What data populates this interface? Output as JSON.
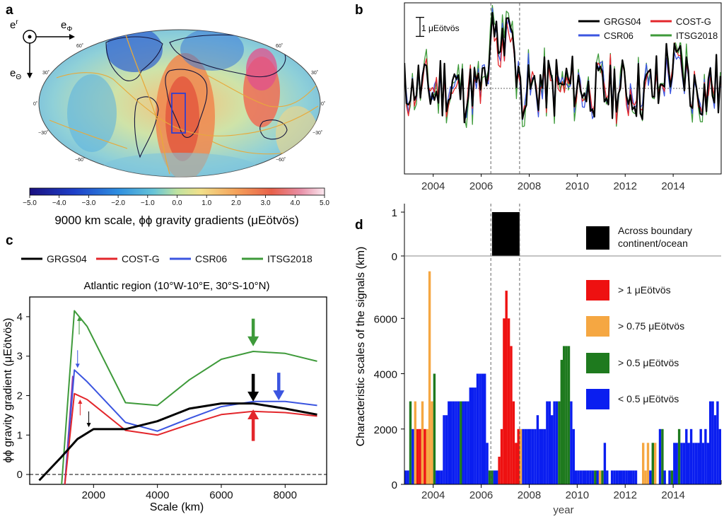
{
  "panels": {
    "a": {
      "letter": "a",
      "colorbar_title": "9000 km scale, ϕϕ gravity gradients (μEötvös)",
      "colorbar_ticks": [
        "−5.0",
        "−4.0",
        "−3.0",
        "−2.0",
        "−1.0",
        "0.0",
        "1.0",
        "2.0",
        "3.0",
        "4.0",
        "5.0"
      ],
      "axes_labels": {
        "er": "e",
        "er_sub": "r",
        "ephi": "e",
        "ephi_sub": "Φ",
        "etheta": "e",
        "etheta_sub": "Θ"
      },
      "lat_labels_left": [
        "60˚",
        "30˚",
        "0˚",
        "−30˚",
        "−60˚"
      ],
      "lat_labels_right": [
        "60˚",
        "30˚",
        "0˚",
        "−30˚",
        "−60˚"
      ]
    },
    "b": {
      "letter": "b",
      "scale_bar_label": "1 μEötvös"
    },
    "c": {
      "letter": "c"
    },
    "d": {
      "letter": "d",
      "legend": {
        "boundary": "Across boundary continent/ocean",
        "boundary_line1": "Across boundary",
        "boundary_line2": "continent/ocean",
        "gt1": "> 1 μEötvös",
        "gt075": "> 0.75 μEötvös",
        "gt05": "> 0.5 μEötvös",
        "lt05": "< 0.5 μEötvös"
      }
    }
  },
  "colors": {
    "GRGS04": "#000000",
    "COST-G": "#e3262b",
    "CSR06": "#3b55e0",
    "ITSG2018": "#3e9a3a",
    "red": "#ee1111",
    "orange": "#f5a742",
    "green": "#1e7a1e",
    "blue": "#0a1ef0",
    "black": "#000000"
  },
  "chart_data": [
    {
      "panel": "b",
      "type": "line",
      "title": "",
      "xlabel": "",
      "ylabel": "",
      "x_ticks": [
        2004,
        2006,
        2008,
        2010,
        2012,
        2014
      ],
      "xlim": [
        2002.8,
        2016.0
      ],
      "ylim": [
        -4.5,
        4.5
      ],
      "reference_line_y": 0,
      "vlines": [
        2006.4,
        2007.6
      ],
      "scale_bar_value": 1,
      "legend": [
        "GRGS04",
        "COST-G",
        "CSR06",
        "ITSG2018"
      ],
      "series": [
        {
          "name": "GRGS04",
          "seed": 1,
          "amp": 1.0
        },
        {
          "name": "COST-G",
          "seed": 2,
          "amp": 0.9
        },
        {
          "name": "CSR06",
          "seed": 3,
          "amp": 0.95
        },
        {
          "name": "ITSG2018",
          "seed": 4,
          "amp": 1.15
        }
      ]
    },
    {
      "panel": "c",
      "type": "line",
      "title": "Atlantic region (10°W-10°E, 30°S-10°N)",
      "xlabel": "Scale (km)",
      "ylabel": "ϕϕ gravity gradient (μEötvös)",
      "x_ticks": [
        2000,
        4000,
        6000,
        8000
      ],
      "y_ticks": [
        0,
        1,
        2,
        3,
        4
      ],
      "xlim": [
        0,
        9300
      ],
      "ylim": [
        -0.25,
        4.5
      ],
      "reference_line_y": 0,
      "legend": [
        "GRGS04",
        "COST-G",
        "CSR06",
        "ITSG2018"
      ],
      "series": [
        {
          "name": "GRGS04",
          "x": [
            300,
            1000,
            1500,
            2000,
            3000,
            4000,
            5000,
            6000,
            7000,
            8000,
            9000
          ],
          "values": [
            -0.15,
            0.45,
            0.9,
            1.15,
            1.15,
            1.35,
            1.67,
            1.8,
            1.8,
            1.67,
            1.52
          ]
        },
        {
          "name": "COST-G",
          "x": [
            1100,
            1400,
            1800,
            3000,
            4000,
            5000,
            6000,
            7000,
            8000,
            9000
          ],
          "values": [
            -0.25,
            2.05,
            1.9,
            1.12,
            1.0,
            1.27,
            1.52,
            1.6,
            1.57,
            1.48
          ]
        },
        {
          "name": "CSR06",
          "x": [
            1100,
            1400,
            1800,
            3000,
            4000,
            5000,
            6000,
            7000,
            8000,
            9000
          ],
          "values": [
            -0.25,
            2.65,
            2.35,
            1.32,
            1.1,
            1.42,
            1.72,
            1.85,
            1.85,
            1.75
          ]
        },
        {
          "name": "ITSG2018",
          "x": [
            1000,
            1400,
            1800,
            3000,
            4000,
            5000,
            6000,
            7000,
            8000,
            9000
          ],
          "values": [
            -0.25,
            4.15,
            3.75,
            1.82,
            1.75,
            2.4,
            2.92,
            3.12,
            3.07,
            2.87
          ]
        }
      ],
      "annotations": [
        {
          "kind": "big-arrow",
          "color": "ITSG2018",
          "x": 7000,
          "tip": 3.25,
          "tail": 3.95
        },
        {
          "kind": "big-arrow",
          "color": "GRGS04",
          "x": 7000,
          "tip": 1.85,
          "tail": 2.55
        },
        {
          "kind": "big-arrow",
          "color": "CSR06",
          "x": 7800,
          "tip": 1.88,
          "tail": 2.58
        },
        {
          "kind": "big-arrow-up",
          "color": "COST-G",
          "x": 7000,
          "tip": 1.65,
          "tail": 0.85
        },
        {
          "kind": "thin-arrow-up",
          "color": "ITSG2018",
          "x": 1550,
          "tip": 4.0,
          "tail": 3.55
        },
        {
          "kind": "thin-arrow-down",
          "color": "CSR06",
          "x": 1500,
          "tip": 2.7,
          "tail": 3.15
        },
        {
          "kind": "thin-arrow-up",
          "color": "COST-G",
          "x": 1580,
          "tip": 1.9,
          "tail": 1.5
        },
        {
          "kind": "thin-arrow-down",
          "color": "GRGS04",
          "x": 1850,
          "tip": 1.2,
          "tail": 1.6
        }
      ]
    },
    {
      "panel": "d",
      "type": "bar",
      "title": "",
      "xlabel": "year",
      "ylabel": "Characteristic scales of the signals (km)",
      "x_ticks": [
        2004,
        2006,
        2008,
        2010,
        2012,
        2014
      ],
      "y_ticks": [
        0,
        2000,
        4000,
        6000
      ],
      "xlim": [
        2002.8,
        2016.0
      ],
      "ylim": [
        0,
        8000
      ],
      "boundary_indicator": {
        "ylim": [
          0,
          1
        ],
        "y_ticks": [
          0,
          1
        ],
        "start": 2006.45,
        "end": 2007.6,
        "value": 1
      },
      "vlines": [
        2006.4,
        2007.6
      ],
      "legend": [
        "> 1 μEötvös",
        "> 0.75 μEötvös",
        "> 0.5 μEötvös",
        "< 0.5 μEötvös"
      ],
      "bar_width_years": 0.0833,
      "bars": [
        {
          "year": 2002.85,
          "value": 500,
          "cat": "blue"
        },
        {
          "year": 2002.95,
          "value": 500,
          "cat": "blue"
        },
        {
          "year": 2003.05,
          "value": 3000,
          "cat": "green"
        },
        {
          "year": 2003.15,
          "value": 2000,
          "cat": "blue"
        },
        {
          "year": 2003.25,
          "value": 3000,
          "cat": "orange"
        },
        {
          "year": 2003.35,
          "value": 2000,
          "cat": "red"
        },
        {
          "year": 2003.45,
          "value": 2000,
          "cat": "red"
        },
        {
          "year": 2003.55,
          "value": 3000,
          "cat": "orange"
        },
        {
          "year": 2003.65,
          "value": 2000,
          "cat": "red"
        },
        {
          "year": 2003.75,
          "value": 2000,
          "cat": "orange"
        },
        {
          "year": 2003.85,
          "value": 7700,
          "cat": "orange"
        },
        {
          "year": 2003.95,
          "value": 3000,
          "cat": "orange"
        },
        {
          "year": 2004.05,
          "value": 4000,
          "cat": "green"
        },
        {
          "year": 2004.15,
          "value": 500,
          "cat": "blue"
        },
        {
          "year": 2004.25,
          "value": 500,
          "cat": "blue"
        },
        {
          "year": 2004.35,
          "value": 500,
          "cat": "blue"
        },
        {
          "year": 2004.45,
          "value": 2500,
          "cat": "blue"
        },
        {
          "year": 2004.55,
          "value": 2500,
          "cat": "blue"
        },
        {
          "year": 2004.65,
          "value": 3000,
          "cat": "blue"
        },
        {
          "year": 2004.75,
          "value": 3000,
          "cat": "blue"
        },
        {
          "year": 2004.85,
          "value": 3000,
          "cat": "blue"
        },
        {
          "year": 2004.95,
          "value": 3000,
          "cat": "blue"
        },
        {
          "year": 2005.05,
          "value": 3000,
          "cat": "blue"
        },
        {
          "year": 2005.15,
          "value": 3000,
          "cat": "green"
        },
        {
          "year": 2005.25,
          "value": 3000,
          "cat": "blue"
        },
        {
          "year": 2005.35,
          "value": 3000,
          "cat": "blue"
        },
        {
          "year": 2005.45,
          "value": 3000,
          "cat": "blue"
        },
        {
          "year": 2005.55,
          "value": 3500,
          "cat": "blue"
        },
        {
          "year": 2005.65,
          "value": 3500,
          "cat": "blue"
        },
        {
          "year": 2005.75,
          "value": 3500,
          "cat": "blue"
        },
        {
          "year": 2005.85,
          "value": 4000,
          "cat": "blue"
        },
        {
          "year": 2005.95,
          "value": 4000,
          "cat": "blue"
        },
        {
          "year": 2006.05,
          "value": 4000,
          "cat": "blue"
        },
        {
          "year": 2006.15,
          "value": 4000,
          "cat": "blue"
        },
        {
          "year": 2006.25,
          "value": 1500,
          "cat": "blue"
        },
        {
          "year": 2006.35,
          "value": 500,
          "cat": "green"
        },
        {
          "year": 2006.45,
          "value": 500,
          "cat": "green"
        },
        {
          "year": 2006.55,
          "value": 500,
          "cat": "blue"
        },
        {
          "year": 2006.65,
          "value": 500,
          "cat": "blue"
        },
        {
          "year": 2006.75,
          "value": 1000,
          "cat": "red"
        },
        {
          "year": 2006.85,
          "value": 2000,
          "cat": "red"
        },
        {
          "year": 2006.95,
          "value": 6000,
          "cat": "red"
        },
        {
          "year": 2007.05,
          "value": 7000,
          "cat": "red"
        },
        {
          "year": 2007.15,
          "value": 6000,
          "cat": "red"
        },
        {
          "year": 2007.25,
          "value": 5000,
          "cat": "red"
        },
        {
          "year": 2007.35,
          "value": 3000,
          "cat": "red"
        },
        {
          "year": 2007.45,
          "value": 1500,
          "cat": "red"
        },
        {
          "year": 2007.55,
          "value": 2000,
          "cat": "red"
        },
        {
          "year": 2007.65,
          "value": 2000,
          "cat": "orange"
        },
        {
          "year": 2007.75,
          "value": 2000,
          "cat": "blue"
        },
        {
          "year": 2007.85,
          "value": 2000,
          "cat": "blue"
        },
        {
          "year": 2007.95,
          "value": 2000,
          "cat": "blue"
        },
        {
          "year": 2008.05,
          "value": 2000,
          "cat": "blue"
        },
        {
          "year": 2008.15,
          "value": 2000,
          "cat": "blue"
        },
        {
          "year": 2008.25,
          "value": 2000,
          "cat": "blue"
        },
        {
          "year": 2008.35,
          "value": 2500,
          "cat": "blue"
        },
        {
          "year": 2008.45,
          "value": 2000,
          "cat": "blue"
        },
        {
          "year": 2008.55,
          "value": 2000,
          "cat": "blue"
        },
        {
          "year": 2008.65,
          "value": 2000,
          "cat": "blue"
        },
        {
          "year": 2008.75,
          "value": 3000,
          "cat": "blue"
        },
        {
          "year": 2008.85,
          "value": 3000,
          "cat": "blue"
        },
        {
          "year": 2008.95,
          "value": 2500,
          "cat": "blue"
        },
        {
          "year": 2009.05,
          "value": 3000,
          "cat": "blue"
        },
        {
          "year": 2009.15,
          "value": 3000,
          "cat": "blue"
        },
        {
          "year": 2009.25,
          "value": 3000,
          "cat": "green"
        },
        {
          "year": 2009.35,
          "value": 4500,
          "cat": "green"
        },
        {
          "year": 2009.45,
          "value": 5000,
          "cat": "green"
        },
        {
          "year": 2009.55,
          "value": 5000,
          "cat": "green"
        },
        {
          "year": 2009.65,
          "value": 5000,
          "cat": "green"
        },
        {
          "year": 2009.75,
          "value": 3000,
          "cat": "blue"
        },
        {
          "year": 2009.85,
          "value": 2000,
          "cat": "blue"
        },
        {
          "year": 2009.95,
          "value": 500,
          "cat": "blue"
        },
        {
          "year": 2010.05,
          "value": 500,
          "cat": "blue"
        },
        {
          "year": 2010.15,
          "value": 500,
          "cat": "blue"
        },
        {
          "year": 2010.25,
          "value": 500,
          "cat": "blue"
        },
        {
          "year": 2010.35,
          "value": 500,
          "cat": "blue"
        },
        {
          "year": 2010.45,
          "value": 500,
          "cat": "blue"
        },
        {
          "year": 2010.55,
          "value": 500,
          "cat": "blue"
        },
        {
          "year": 2010.65,
          "value": 500,
          "cat": "blue"
        },
        {
          "year": 2010.75,
          "value": 500,
          "cat": "green"
        },
        {
          "year": 2010.85,
          "value": 500,
          "cat": "blue"
        },
        {
          "year": 2010.95,
          "value": 500,
          "cat": "orange"
        },
        {
          "year": 2011.05,
          "value": 500,
          "cat": "green"
        },
        {
          "year": 2011.15,
          "value": 1500,
          "cat": "blue"
        },
        {
          "year": 2011.25,
          "value": 500,
          "cat": "blue"
        },
        {
          "year": 2011.45,
          "value": 500,
          "cat": "blue"
        },
        {
          "year": 2011.55,
          "value": 500,
          "cat": "blue"
        },
        {
          "year": 2011.65,
          "value": 500,
          "cat": "blue"
        },
        {
          "year": 2011.75,
          "value": 500,
          "cat": "blue"
        },
        {
          "year": 2011.85,
          "value": 500,
          "cat": "blue"
        },
        {
          "year": 2011.95,
          "value": 500,
          "cat": "blue"
        },
        {
          "year": 2012.05,
          "value": 500,
          "cat": "blue"
        },
        {
          "year": 2012.15,
          "value": 500,
          "cat": "blue"
        },
        {
          "year": 2012.25,
          "value": 500,
          "cat": "blue"
        },
        {
          "year": 2012.35,
          "value": 500,
          "cat": "blue"
        },
        {
          "year": 2012.45,
          "value": 500,
          "cat": "blue"
        },
        {
          "year": 2012.75,
          "value": 1500,
          "cat": "orange"
        },
        {
          "year": 2012.85,
          "value": 500,
          "cat": "orange"
        },
        {
          "year": 2012.95,
          "value": 1500,
          "cat": "orange"
        },
        {
          "year": 2013.05,
          "value": 500,
          "cat": "blue"
        },
        {
          "year": 2013.15,
          "value": 1500,
          "cat": "green"
        },
        {
          "year": 2013.25,
          "value": 1500,
          "cat": "orange"
        },
        {
          "year": 2013.45,
          "value": 2000,
          "cat": "blue"
        },
        {
          "year": 2013.55,
          "value": 2000,
          "cat": "green"
        },
        {
          "year": 2013.65,
          "value": 500,
          "cat": "blue"
        },
        {
          "year": 2013.85,
          "value": 500,
          "cat": "blue"
        },
        {
          "year": 2013.95,
          "value": 500,
          "cat": "green"
        },
        {
          "year": 2014.05,
          "value": 1500,
          "cat": "blue"
        },
        {
          "year": 2014.15,
          "value": 1500,
          "cat": "blue"
        },
        {
          "year": 2014.25,
          "value": 2000,
          "cat": "green"
        },
        {
          "year": 2014.35,
          "value": 1500,
          "cat": "blue"
        },
        {
          "year": 2014.45,
          "value": 1500,
          "cat": "blue"
        },
        {
          "year": 2014.55,
          "value": 2000,
          "cat": "blue"
        },
        {
          "year": 2014.65,
          "value": 1500,
          "cat": "blue"
        },
        {
          "year": 2014.75,
          "value": 2000,
          "cat": "blue"
        },
        {
          "year": 2014.85,
          "value": 1500,
          "cat": "blue"
        },
        {
          "year": 2014.95,
          "value": 1500,
          "cat": "blue"
        },
        {
          "year": 2015.05,
          "value": 1500,
          "cat": "blue"
        },
        {
          "year": 2015.15,
          "value": 2000,
          "cat": "blue"
        },
        {
          "year": 2015.25,
          "value": 1500,
          "cat": "blue"
        },
        {
          "year": 2015.35,
          "value": 2000,
          "cat": "blue"
        },
        {
          "year": 2015.45,
          "value": 1500,
          "cat": "blue"
        },
        {
          "year": 2015.55,
          "value": 3000,
          "cat": "blue"
        },
        {
          "year": 2015.65,
          "value": 3000,
          "cat": "blue"
        },
        {
          "year": 2015.75,
          "value": 2500,
          "cat": "blue"
        },
        {
          "year": 2015.85,
          "value": 3000,
          "cat": "blue"
        },
        {
          "year": 2015.95,
          "value": 2000,
          "cat": "blue"
        }
      ]
    }
  ]
}
